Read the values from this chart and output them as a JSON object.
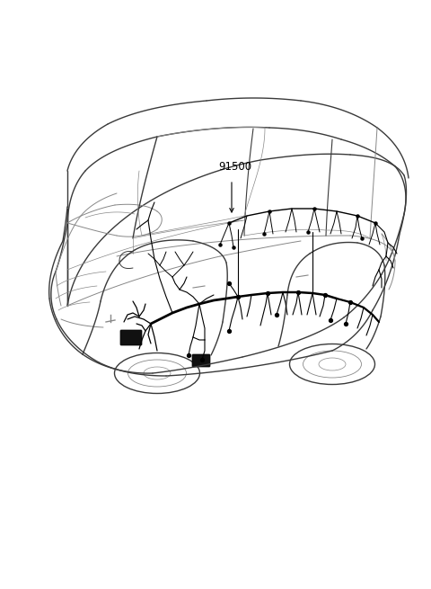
{
  "background_color": "#ffffff",
  "label_text": "91500",
  "label_fontsize": 8.5,
  "label_color": "#000000",
  "figure_width": 4.8,
  "figure_height": 6.55,
  "dpi": 100,
  "car_color": "#3a3a3a",
  "wire_color": "#000000",
  "light_color": "#888888",
  "window_color": "#cccccc"
}
